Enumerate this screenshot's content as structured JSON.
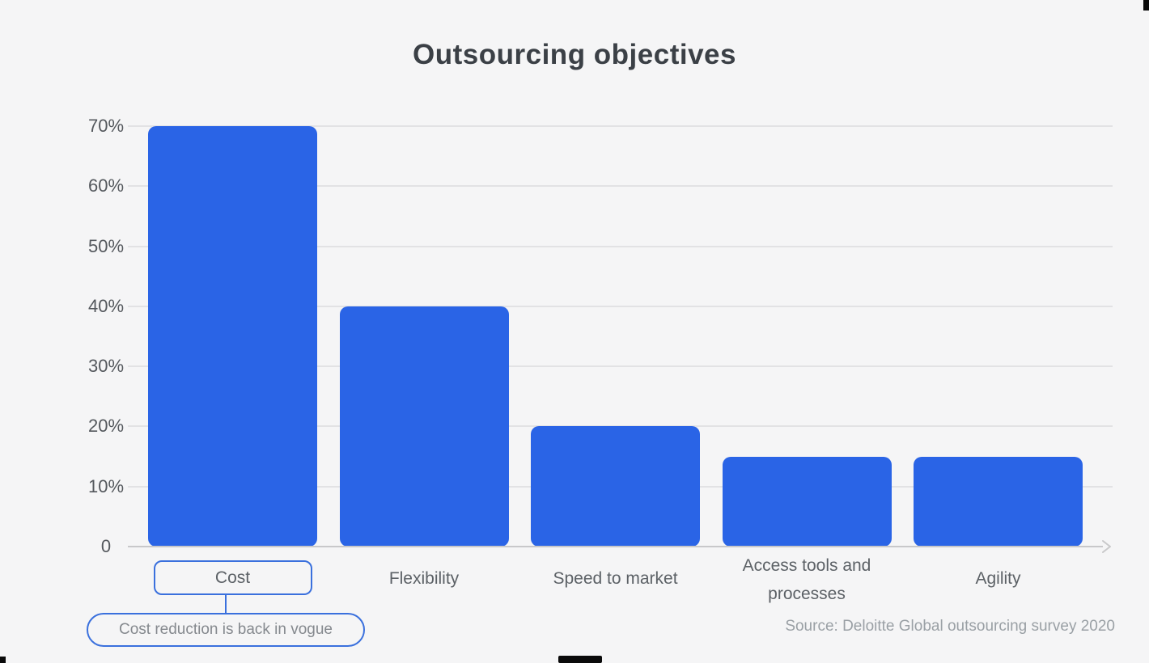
{
  "title": "Outsourcing objectives",
  "chart_data": {
    "type": "bar",
    "title": "Outsourcing objectives",
    "categories": [
      "Cost",
      "Flexibility",
      "Speed to market",
      "Access tools and processes",
      "Agility"
    ],
    "values": [
      70,
      40,
      20,
      15,
      15
    ],
    "unit": "%",
    "ylim": [
      0,
      70
    ],
    "ytick_values": [
      0,
      10,
      20,
      30,
      40,
      50,
      60,
      70
    ],
    "ytick_labels": [
      "0",
      "10%",
      "20%",
      "30%",
      "40%",
      "50%",
      "60%",
      "70%"
    ],
    "grid": true,
    "legend": "none",
    "bar_color": "#2a64e6",
    "highlighted_category": "Cost"
  },
  "annotation": {
    "target_category": "Cost",
    "text": "Cost reduction is back in vogue"
  },
  "source_note": "Source: Deloitte Global outsourcing survey 2020",
  "colors": {
    "background": "#f5f5f6",
    "bar": "#2a64e6",
    "accent_border": "#3a70dd",
    "grid": "#e2e2e4",
    "axis": "#c8c8ca",
    "title_text": "#3b4046",
    "y_label_text": "#54585d",
    "x_label_text": "#5c6166",
    "callout_text": "#85898e",
    "source_text": "#9aa0a5"
  }
}
